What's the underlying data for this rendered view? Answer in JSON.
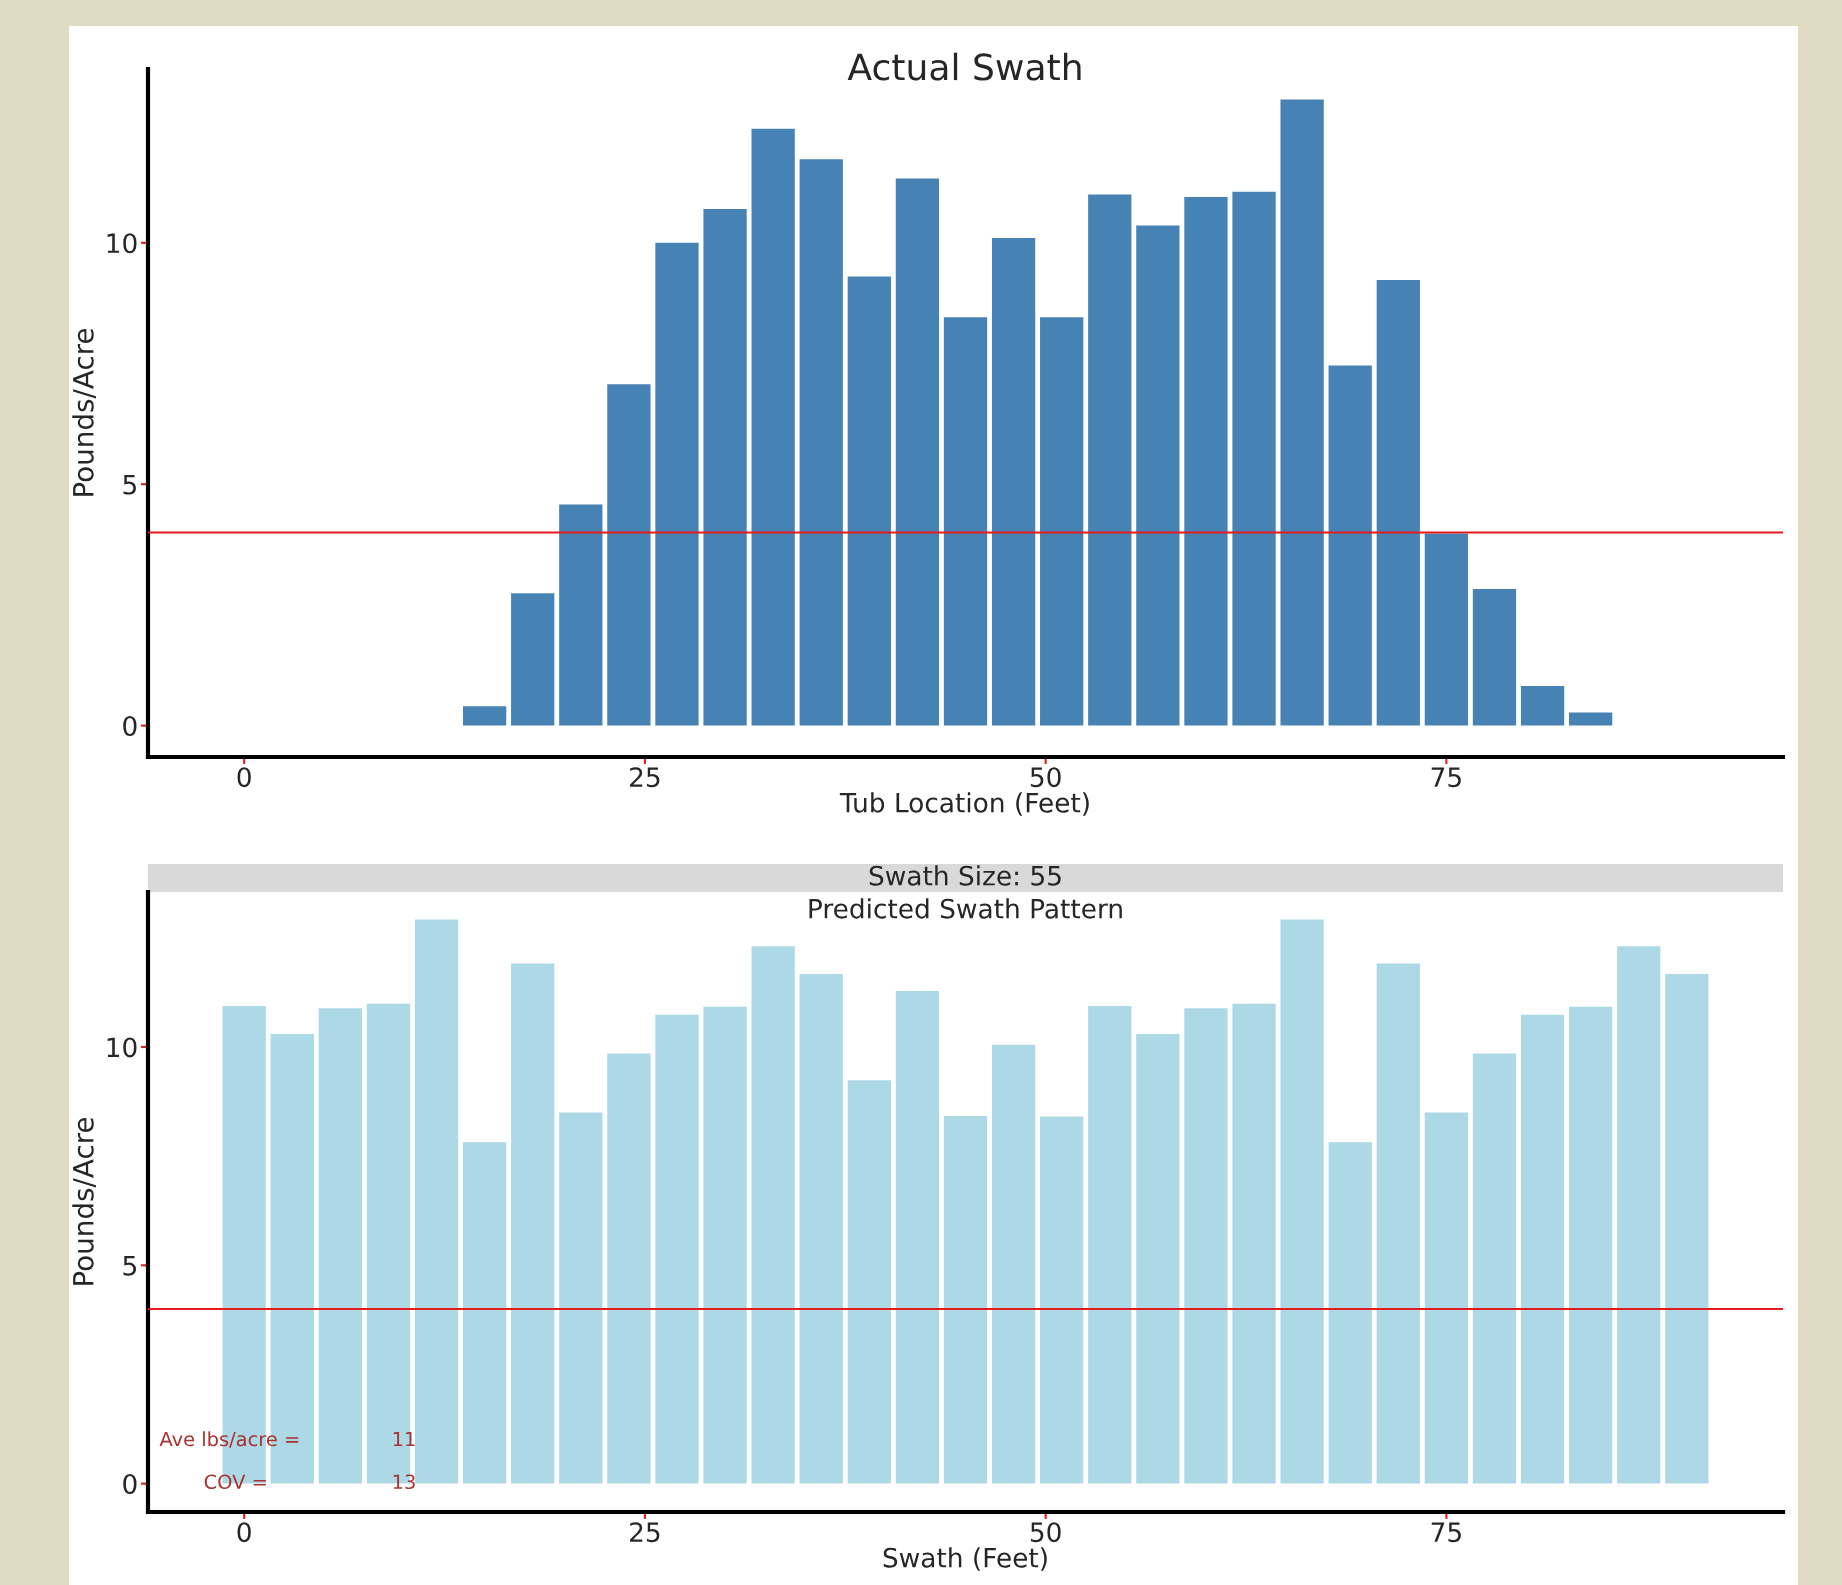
{
  "chart_data": [
    {
      "type": "bar",
      "title": "Actual Swath",
      "xlabel": "Tub Location (Feet)",
      "ylabel": "Pounds/Acre",
      "color": "#4682b4",
      "x": [
        15,
        18,
        21,
        24,
        27,
        30,
        33,
        36,
        39,
        42,
        45,
        48,
        51,
        54,
        57,
        60,
        63,
        66,
        69,
        72,
        75,
        78,
        81,
        84
      ],
      "values": [
        0.4,
        2.74,
        4.58,
        7.07,
        10.0,
        10.7,
        12.36,
        11.73,
        9.3,
        11.33,
        8.46,
        10.1,
        8.46,
        11.0,
        10.36,
        10.95,
        11.06,
        12.97,
        7.46,
        9.23,
        3.98,
        2.83,
        0.82,
        0.27
      ],
      "xlim": [
        -6,
        96
      ],
      "ylim": [
        -0.65,
        13.6
      ],
      "xticks": [
        0,
        25,
        50,
        75
      ],
      "yticks": [
        0,
        5,
        10
      ],
      "ref_lines": [
        {
          "axis": "y",
          "value": 4,
          "color": "#e41a1c"
        }
      ]
    },
    {
      "type": "bar",
      "title": "Swath Size: 55",
      "subtitle": "Predicted Swath Pattern",
      "xlabel": "Swath (Feet)",
      "ylabel": "Pounds/Acre",
      "color": "#add8e6",
      "x": [
        0,
        3,
        6,
        9,
        12,
        15,
        18,
        21,
        24,
        27,
        30,
        33,
        36,
        39,
        42,
        45,
        48,
        51,
        54,
        57,
        60,
        63,
        66,
        69,
        72,
        75,
        78,
        81,
        84,
        87,
        90
      ],
      "values": [
        10.94,
        10.3,
        10.89,
        10.99,
        12.92,
        7.82,
        11.91,
        8.5,
        9.85,
        10.74,
        10.92,
        12.31,
        11.67,
        9.24,
        11.28,
        8.42,
        10.05,
        8.41,
        10.94,
        10.3,
        10.89,
        10.99,
        12.92,
        7.82,
        11.91,
        8.5,
        9.85,
        10.74,
        10.92,
        12.31,
        11.67
      ],
      "xlim": [
        -6,
        96
      ],
      "ylim": [
        -0.65,
        13.55
      ],
      "xticks": [
        0,
        25,
        50,
        75
      ],
      "yticks": [
        0,
        5,
        10
      ],
      "ref_lines": [
        {
          "axis": "y",
          "value": 4,
          "color": "#e41a1c"
        }
      ],
      "annotations": [
        "Ave lbs/acre =",
        "11",
        "COV =",
        "13"
      ]
    }
  ]
}
